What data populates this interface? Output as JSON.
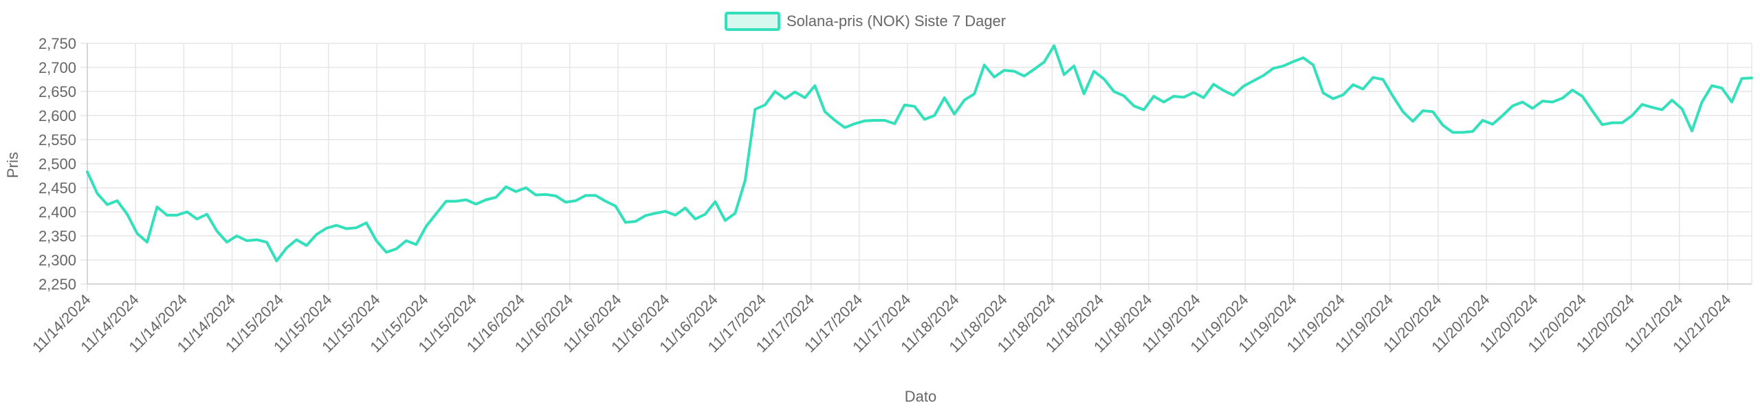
{
  "chart_data": {
    "type": "line",
    "legend": {
      "label": "Solana-pris (NOK) Siste 7 Dager",
      "position": "top-center"
    },
    "xlabel": "Dato",
    "ylabel": "Pris",
    "ylim": [
      2250,
      2750
    ],
    "yticks": [
      2250,
      2300,
      2350,
      2400,
      2450,
      2500,
      2550,
      2600,
      2650,
      2700,
      2750
    ],
    "ytick_labels": [
      "2,250",
      "2,300",
      "2,350",
      "2,400",
      "2,450",
      "2,500",
      "2,550",
      "2,600",
      "2,650",
      "2,700",
      "2,750"
    ],
    "xtick_labels": [
      "11/14/2024",
      "11/14/2024",
      "11/14/2024",
      "11/14/2024",
      "11/15/2024",
      "11/15/2024",
      "11/15/2024",
      "11/15/2024",
      "11/15/2024",
      "11/16/2024",
      "11/16/2024",
      "11/16/2024",
      "11/16/2024",
      "11/16/2024",
      "11/17/2024",
      "11/17/2024",
      "11/17/2024",
      "11/17/2024",
      "11/18/2024",
      "11/18/2024",
      "11/18/2024",
      "11/18/2024",
      "11/18/2024",
      "11/19/2024",
      "11/19/2024",
      "11/19/2024",
      "11/19/2024",
      "11/19/2024",
      "11/20/2024",
      "11/20/2024",
      "11/20/2024",
      "11/20/2024",
      "11/20/2024",
      "11/21/2024",
      "11/21/2024"
    ],
    "grid": true,
    "series": [
      {
        "name": "Solana-pris (NOK) Siste 7 Dager",
        "values": [
          2483,
          2438,
          2415,
          2423,
          2395,
          2355,
          2337,
          2410,
          2393,
          2393,
          2400,
          2385,
          2395,
          2360,
          2337,
          2350,
          2340,
          2342,
          2337,
          2298,
          2325,
          2342,
          2330,
          2353,
          2366,
          2372,
          2365,
          2367,
          2377,
          2340,
          2316,
          2323,
          2340,
          2332,
          2370,
          2396,
          2422,
          2422,
          2425,
          2416,
          2425,
          2430,
          2452,
          2442,
          2450,
          2435,
          2436,
          2433,
          2420,
          2423,
          2434,
          2434,
          2422,
          2412,
          2378,
          2380,
          2392,
          2397,
          2401,
          2393,
          2408,
          2385,
          2395,
          2421,
          2382,
          2397,
          2465,
          2613,
          2622,
          2650,
          2635,
          2649,
          2637,
          2662,
          2608,
          2590,
          2575,
          2583,
          2589,
          2590,
          2590,
          2583,
          2622,
          2619,
          2592,
          2600,
          2637,
          2603,
          2632,
          2645,
          2705,
          2680,
          2694,
          2692,
          2682,
          2696,
          2711,
          2745,
          2685,
          2703,
          2645,
          2692,
          2676,
          2650,
          2641,
          2620,
          2612,
          2640,
          2628,
          2640,
          2638,
          2648,
          2637,
          2665,
          2652,
          2642,
          2661,
          2672,
          2683,
          2698,
          2703,
          2712,
          2720,
          2705,
          2647,
          2635,
          2643,
          2664,
          2655,
          2679,
          2675,
          2640,
          2608,
          2588,
          2610,
          2608,
          2580,
          2565,
          2565,
          2567,
          2590,
          2582,
          2600,
          2620,
          2628,
          2615,
          2630,
          2628,
          2636,
          2653,
          2640,
          2610,
          2581,
          2585,
          2585,
          2600,
          2623,
          2617,
          2612,
          2632,
          2614,
          2568,
          2628,
          2662,
          2657,
          2628,
          2677,
          2678
        ]
      }
    ],
    "colors": {
      "line": "#33e0bb",
      "legend_fill": "#d7f8ef",
      "grid": "#e6e6e6",
      "axis": "#cccccc",
      "text": "#666666"
    }
  }
}
